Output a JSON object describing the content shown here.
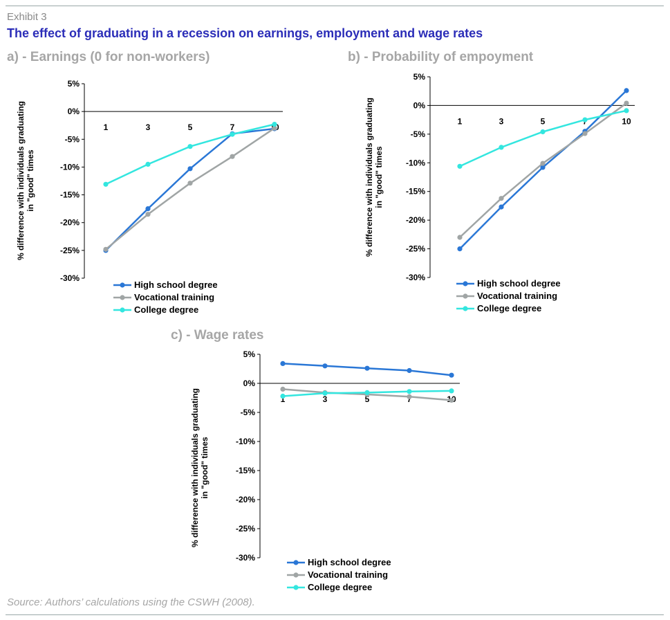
{
  "header": {
    "exhibit": "Exhibit 3",
    "title": "The effect of graduating in a recession on earnings, employment and wage rates"
  },
  "source": "Source: Authors’ calculations using the CSWH (2008).",
  "colors": {
    "high_school": "#2a77d6",
    "vocational": "#a0a5a5",
    "college": "#33e6df",
    "title_blue": "#2b2db8",
    "panel_title_gray": "#a6a6a6"
  },
  "chart_data": [
    {
      "type": "line",
      "title": "a) - Earnings (0 for non-workers)",
      "ylabel_lines": [
        "% difference with individuals graduating",
        "in \"good\" times"
      ],
      "categories": [
        "1",
        "3",
        "5",
        "7",
        "10"
      ],
      "ylim": [
        -30,
        5
      ],
      "yticks": [
        "5%",
        "0%",
        "-5%",
        "-10%",
        "-15%",
        "-20%",
        "-25%",
        "-30%"
      ],
      "series": [
        {
          "name": "High school degree",
          "values": [
            -25.0,
            -17.5,
            -10.3,
            -4.0,
            -3.1
          ]
        },
        {
          "name": "Vocational training",
          "values": [
            -24.8,
            -18.5,
            -12.9,
            -8.1,
            -3.0
          ]
        },
        {
          "name": "College degree",
          "values": [
            -13.1,
            -9.5,
            -6.3,
            -4.1,
            -2.3
          ]
        }
      ],
      "legend": "bottom-left"
    },
    {
      "type": "line",
      "title": "b) - Probability of empoyment",
      "ylabel_lines": [
        "% difference with individuals graduating",
        "in \"good\" times"
      ],
      "categories": [
        "1",
        "3",
        "5",
        "7",
        "10"
      ],
      "ylim": [
        -30,
        5
      ],
      "yticks": [
        "5%",
        "0%",
        "-5%",
        "-10%",
        "-15%",
        "-20%",
        "-25%",
        "-30%"
      ],
      "series": [
        {
          "name": "High school degree",
          "values": [
            -25.0,
            -17.7,
            -10.8,
            -4.5,
            2.6
          ]
        },
        {
          "name": "Vocational training",
          "values": [
            -23.0,
            -16.2,
            -10.1,
            -4.9,
            0.4
          ]
        },
        {
          "name": "College degree",
          "values": [
            -10.6,
            -7.3,
            -4.6,
            -2.5,
            -0.9
          ]
        }
      ],
      "legend": "bottom-left"
    },
    {
      "type": "line",
      "title": "c) - Wage rates",
      "ylabel_lines": [
        "% difference with individuals graduating",
        "in \"good\" times"
      ],
      "categories": [
        "1",
        "3",
        "5",
        "7",
        "10"
      ],
      "ylim": [
        -30,
        5
      ],
      "yticks": [
        "5%",
        "0%",
        "-5%",
        "-10%",
        "-15%",
        "-20%",
        "-25%",
        "-30%"
      ],
      "series": [
        {
          "name": "High school degree",
          "values": [
            3.4,
            3.0,
            2.6,
            2.2,
            1.4
          ]
        },
        {
          "name": "Vocational training",
          "values": [
            -1.0,
            -1.6,
            -1.9,
            -2.3,
            -2.9
          ]
        },
        {
          "name": "College degree",
          "values": [
            -2.2,
            -1.7,
            -1.6,
            -1.4,
            -1.3
          ]
        }
      ],
      "legend": "bottom-left"
    }
  ]
}
